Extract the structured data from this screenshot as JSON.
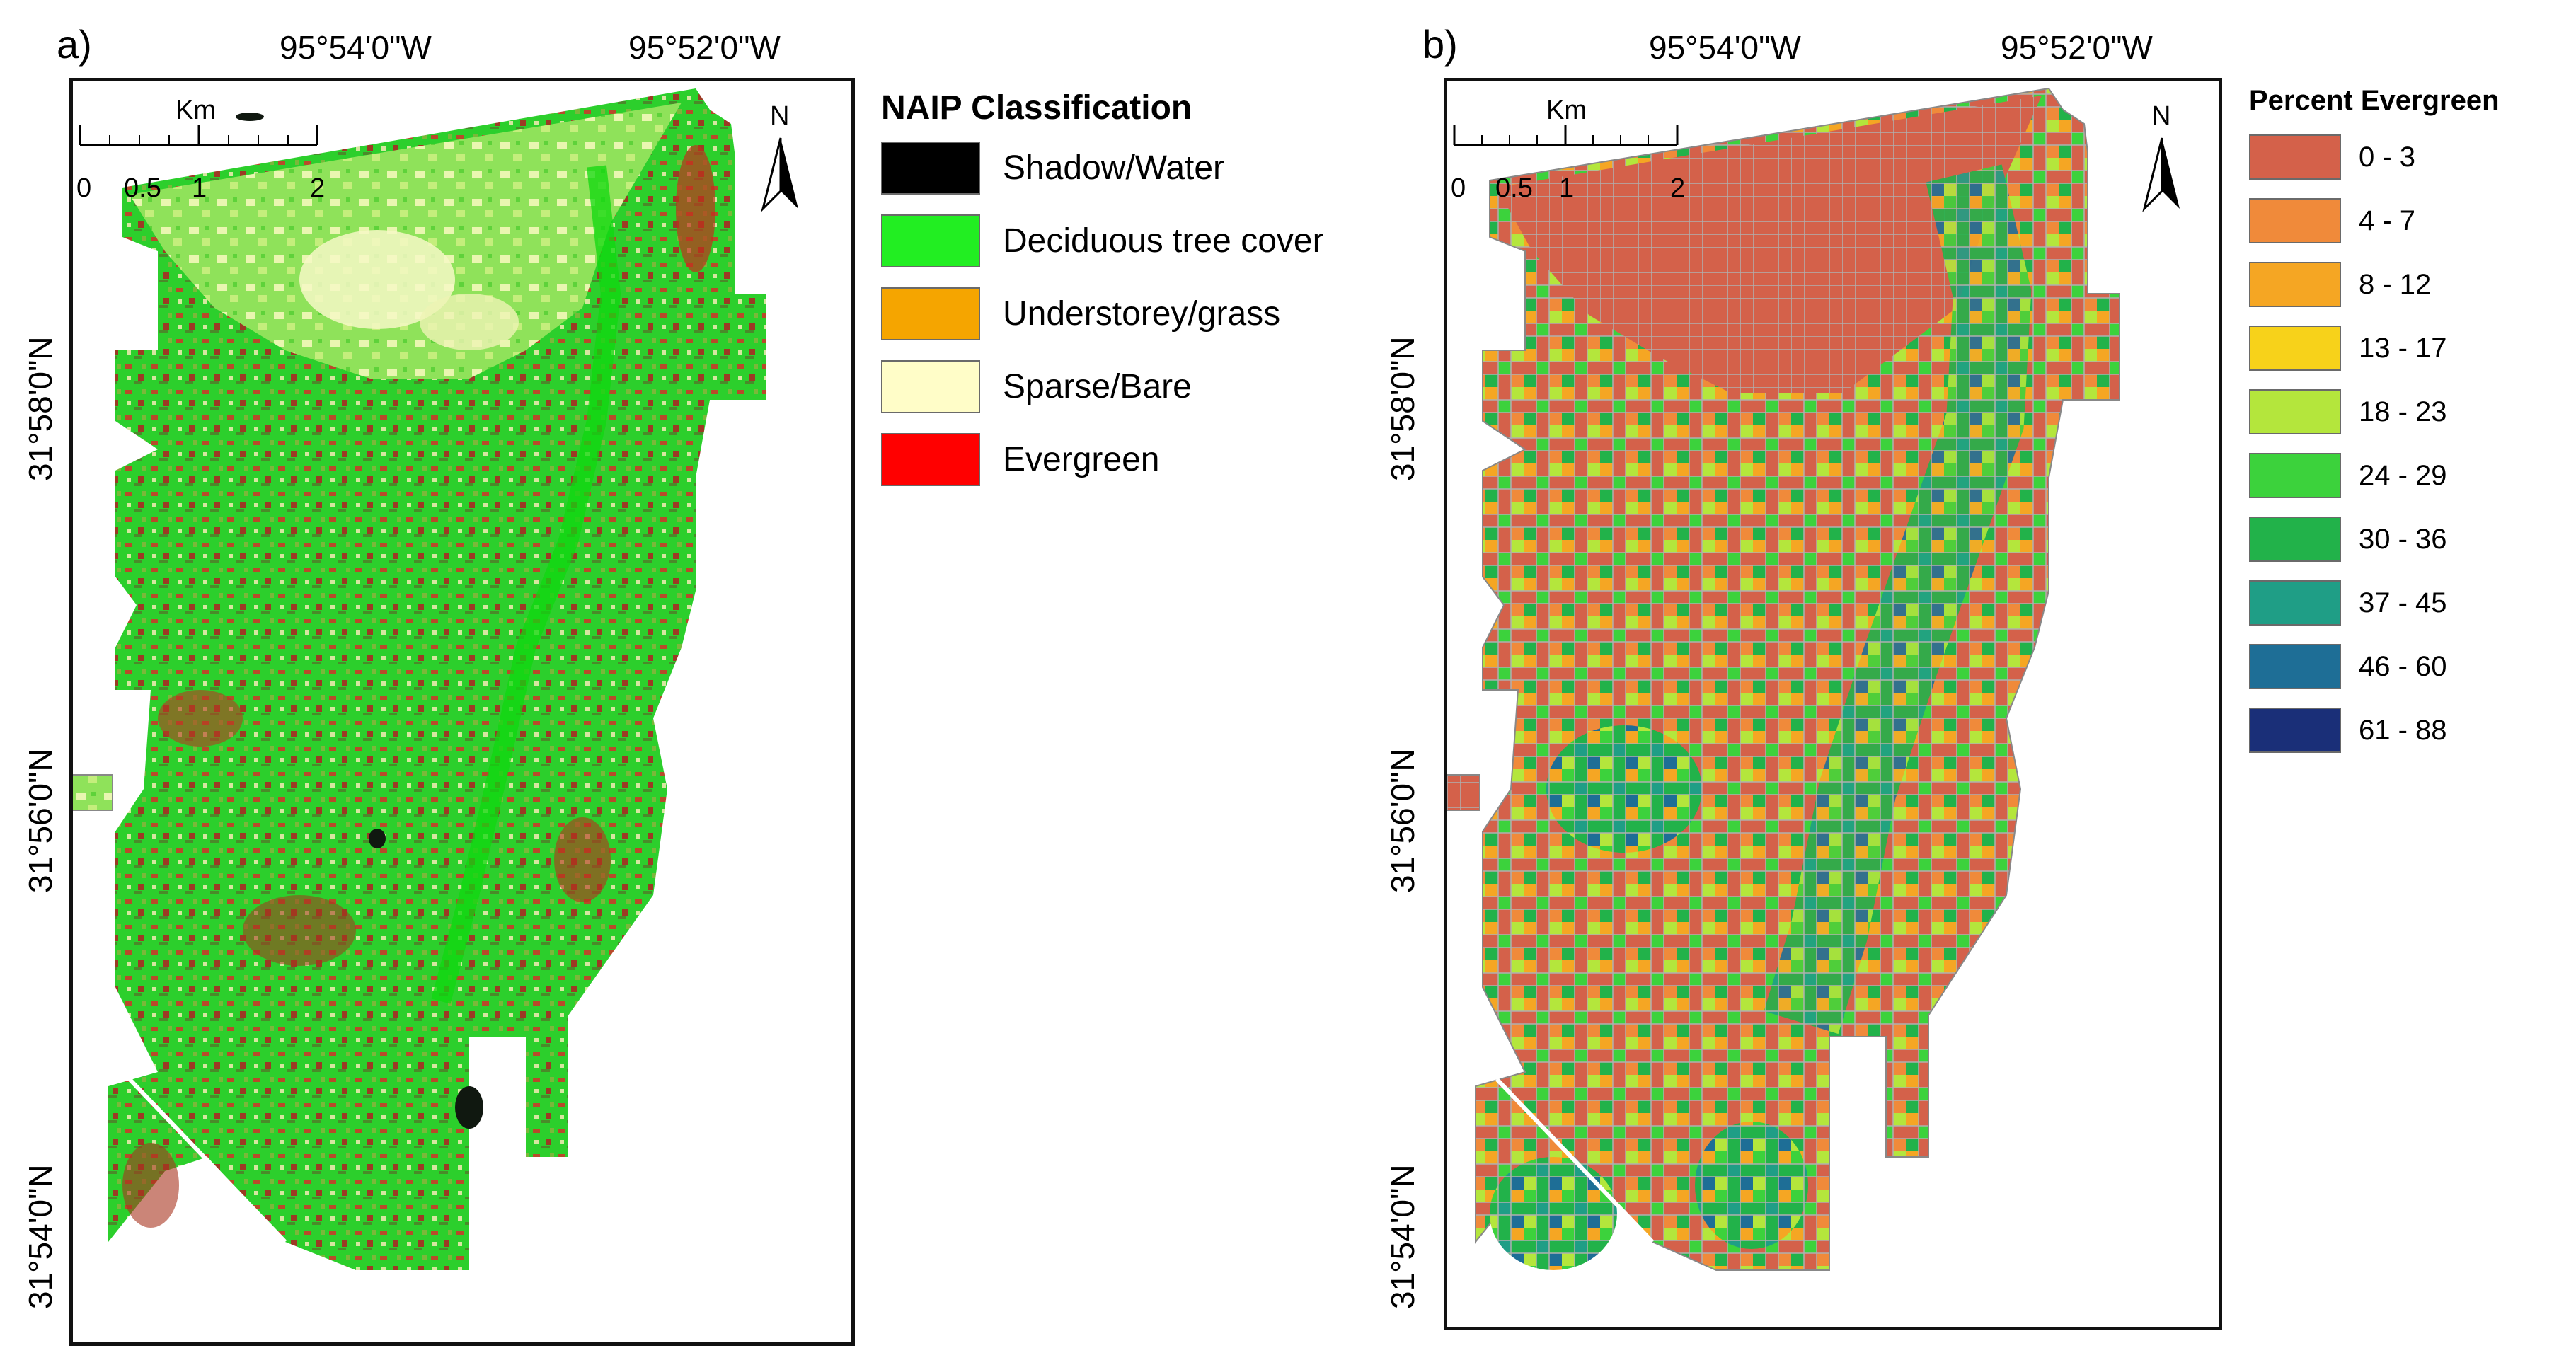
{
  "panel_a": {
    "label": "a)",
    "lon_labels": [
      "95°54'0\"W",
      "95°52'0\"W"
    ],
    "lat_labels": [
      "31°58'0\"N",
      "31°56'0\"N",
      "31°54'0\"N"
    ],
    "scale": {
      "unit": "Km",
      "ticks": [
        "0",
        "0.5",
        "1",
        "2"
      ]
    },
    "north": "N",
    "legend": {
      "title": "NAIP Classification",
      "items": [
        {
          "label": "Shadow/Water",
          "color": "#000000"
        },
        {
          "label": "Deciduous tree cover",
          "color": "#22ee22"
        },
        {
          "label": "Understorey/grass",
          "color": "#f5a500"
        },
        {
          "label": "Sparse/Bare",
          "color": "#fffdc8"
        },
        {
          "label": "Evergreen",
          "color": "#ff0000"
        }
      ]
    }
  },
  "panel_b": {
    "label": "b)",
    "lon_labels": [
      "95°54'0\"W",
      "95°52'0\"W"
    ],
    "lat_labels": [
      "31°58'0\"N",
      "31°56'0\"N",
      "31°54'0\"N"
    ],
    "scale": {
      "unit": "Km",
      "ticks": [
        "0",
        "0.5",
        "1",
        "2"
      ]
    },
    "north": "N",
    "legend": {
      "title": "Percent Evergreen",
      "items": [
        {
          "label": "0 - 3",
          "color": "#d4614a"
        },
        {
          "label": "4 - 7",
          "color": "#f08a3a"
        },
        {
          "label": "8 - 12",
          "color": "#f5a623"
        },
        {
          "label": "13 - 17",
          "color": "#f7d21a"
        },
        {
          "label": "18 - 23",
          "color": "#b4e63c"
        },
        {
          "label": "24 - 29",
          "color": "#3cd23c"
        },
        {
          "label": "30 - 36",
          "color": "#22b24a"
        },
        {
          "label": "37 - 45",
          "color": "#1f9e86"
        },
        {
          "label": "46 - 60",
          "color": "#1e6e96"
        },
        {
          "label": "61 - 88",
          "color": "#1a2f78"
        }
      ]
    }
  }
}
